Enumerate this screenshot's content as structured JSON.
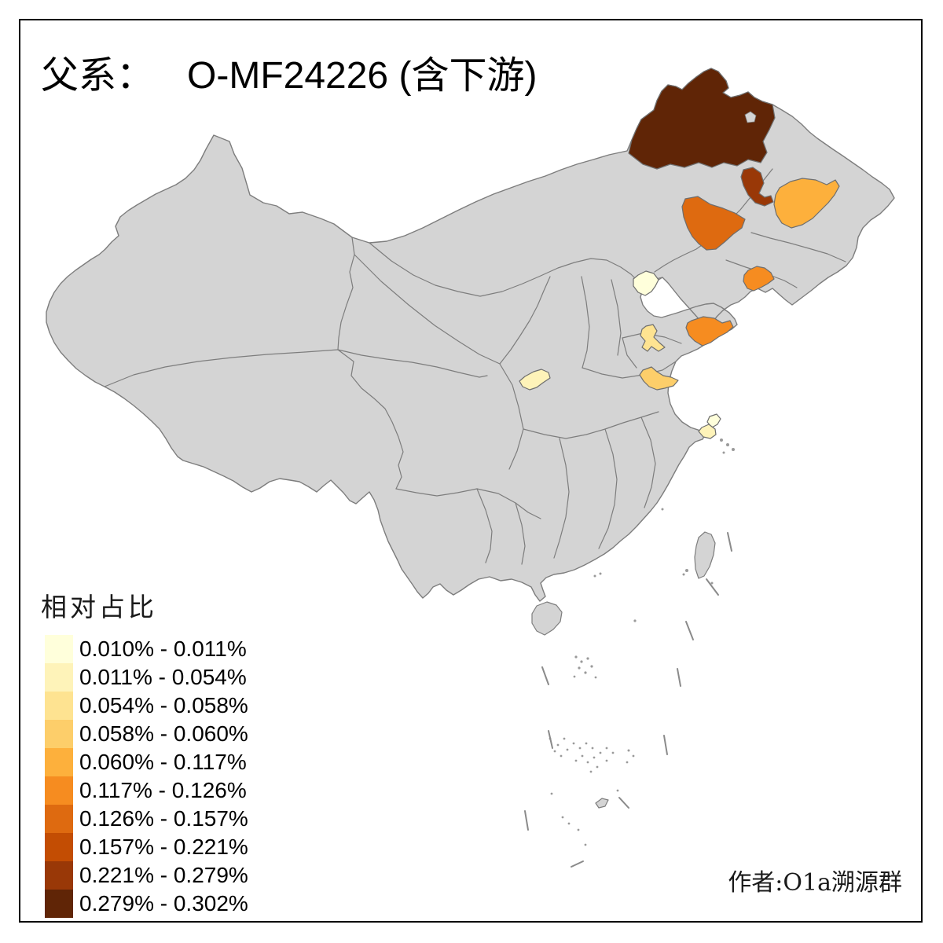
{
  "title": {
    "prefix": "父系：",
    "value": "O-MF24226 (含下游)"
  },
  "legend": {
    "title": "相对占比",
    "classes": [
      {
        "label": "0.010% - 0.011%",
        "color": "#FFFFDB"
      },
      {
        "label": "0.011% - 0.054%",
        "color": "#FEF3B9"
      },
      {
        "label": "0.054% - 0.058%",
        "color": "#FEE391"
      },
      {
        "label": "0.058% - 0.060%",
        "color": "#FDCE6A"
      },
      {
        "label": "0.060% - 0.117%",
        "color": "#FDB03C"
      },
      {
        "label": "0.117% - 0.126%",
        "color": "#F68C20"
      },
      {
        "label": "0.126% - 0.157%",
        "color": "#DE6A10"
      },
      {
        "label": "0.157% - 0.221%",
        "color": "#C34D03"
      },
      {
        "label": "0.221% - 0.279%",
        "color": "#993807"
      },
      {
        "label": "0.279% - 0.302%",
        "color": "#602506"
      }
    ]
  },
  "map": {
    "land_color": "#D4D4D4",
    "border_color": "#7D7D7D",
    "sea_color": "#FFFFFF",
    "regions": [
      {
        "id": "region-inner-mongolia-northeast",
        "class_index": 9
      },
      {
        "id": "region-heilongjiang-north",
        "class_index": 8
      },
      {
        "id": "region-heilongjiang-central",
        "class_index": 6
      },
      {
        "id": "region-heilongjiang-east",
        "class_index": 4
      },
      {
        "id": "region-liaoning-coast",
        "class_index": 5
      },
      {
        "id": "region-beijing",
        "class_index": 0
      },
      {
        "id": "region-shandong-central",
        "class_index": 2
      },
      {
        "id": "region-shandong-peninsula",
        "class_index": 5
      },
      {
        "id": "region-jiangsu-north",
        "class_index": 3
      },
      {
        "id": "region-shaanxi-central",
        "class_index": 1
      },
      {
        "id": "region-yangtze-delta-east",
        "class_index": 0
      },
      {
        "id": "region-yangtze-delta-west",
        "class_index": 1
      }
    ]
  },
  "attribution": "作者:O1a溯源群"
}
